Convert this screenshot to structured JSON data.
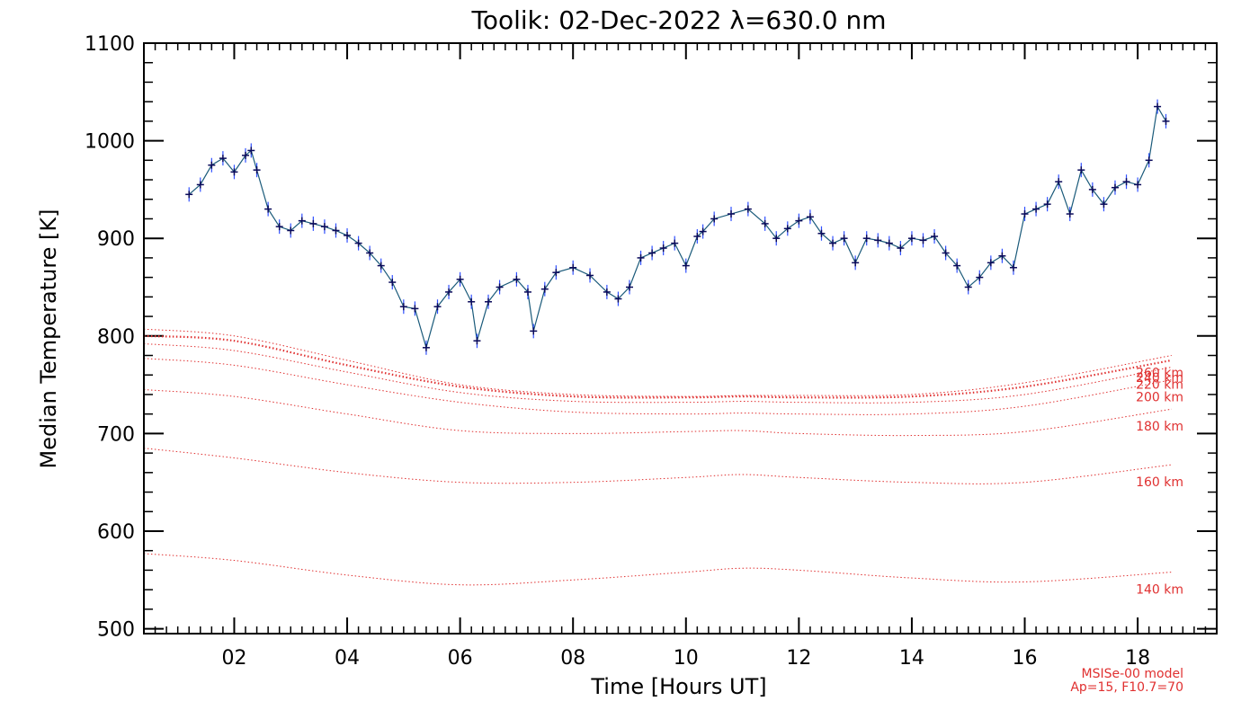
{
  "chart_data": {
    "type": "line",
    "title": "Toolik: 02-Dec-2022 λ=630.0 nm",
    "xlabel": "Time [Hours UT]",
    "ylabel": "Median Temperature [K]",
    "xlim": [
      0.4,
      19.4
    ],
    "ylim": [
      495,
      1100
    ],
    "x_ticks": [
      2,
      4,
      6,
      8,
      10,
      12,
      14,
      16,
      18
    ],
    "x_tick_labels": [
      "02",
      "04",
      "06",
      "08",
      "10",
      "12",
      "14",
      "16",
      "18"
    ],
    "y_ticks": [
      500,
      600,
      700,
      800,
      900,
      1000,
      1100
    ],
    "y_tick_labels": [
      "500",
      "600",
      "700",
      "800",
      "900",
      "1000",
      "1100"
    ],
    "grid": false,
    "colors": {
      "measured": "#0a0a5a",
      "errorbar": "#3050ff",
      "model": "#e03030"
    },
    "series": [
      {
        "x": [
          1.2,
          1.4,
          1.6,
          1.8,
          2.0,
          2.2,
          2.3,
          2.4,
          2.6,
          2.8,
          3.0,
          3.2,
          3.4,
          3.6,
          3.8,
          4.0,
          4.2,
          4.4,
          4.6,
          4.8,
          5.0,
          5.2,
          5.4,
          5.6,
          5.8,
          6.0,
          6.2,
          6.3,
          6.5,
          6.7,
          7.0,
          7.2,
          7.3,
          7.5,
          7.7,
          8.0,
          8.3,
          8.6,
          8.8,
          9.0,
          9.2,
          9.4,
          9.6,
          9.8,
          10.0,
          10.2,
          10.3,
          10.5,
          10.8,
          11.1,
          11.4,
          11.6,
          11.8,
          12.0,
          12.2,
          12.4,
          12.6,
          12.8,
          13.0,
          13.2,
          13.4,
          13.6,
          13.8,
          14.0,
          14.2,
          14.4,
          14.6,
          14.8,
          15.0,
          15.2,
          15.4,
          15.6,
          15.8,
          16.0,
          16.2,
          16.4,
          16.6,
          16.8,
          17.0,
          17.2,
          17.4,
          17.6,
          17.8,
          18.0,
          18.2,
          18.35,
          18.5
        ],
        "y": [
          945,
          955,
          975,
          982,
          968,
          985,
          990,
          970,
          930,
          912,
          908,
          918,
          915,
          912,
          908,
          903,
          895,
          885,
          872,
          855,
          830,
          828,
          788,
          830,
          845,
          858,
          835,
          795,
          835,
          850,
          858,
          845,
          805,
          848,
          865,
          870,
          862,
          845,
          838,
          850,
          880,
          885,
          890,
          895,
          872,
          902,
          907,
          920,
          925,
          930,
          915,
          900,
          910,
          918,
          922,
          905,
          895,
          900,
          875,
          900,
          898,
          895,
          890,
          900,
          898,
          902,
          885,
          872,
          850,
          860,
          875,
          882,
          870,
          925,
          930,
          935,
          958,
          925,
          970,
          950,
          935,
          952,
          958,
          955,
          980,
          1035,
          1020
        ]
      },
      {
        "name": "140 km",
        "x": [
          0.4,
          2,
          4,
          6,
          8,
          10,
          11,
          12,
          14,
          16,
          18.6
        ],
        "y": [
          577,
          570,
          555,
          545,
          550,
          558,
          562,
          560,
          552,
          548,
          558
        ]
      },
      {
        "name": "160 km",
        "x": [
          0.4,
          2,
          4,
          6,
          8,
          10,
          11,
          12,
          14,
          16,
          18.6
        ],
        "y": [
          685,
          675,
          660,
          650,
          650,
          655,
          658,
          655,
          650,
          650,
          668
        ]
      },
      {
        "name": "180 km",
        "x": [
          0.4,
          2,
          4,
          6,
          8,
          10,
          11,
          12,
          14,
          16,
          18.6
        ],
        "y": [
          745,
          738,
          720,
          703,
          700,
          702,
          703,
          700,
          698,
          702,
          725
        ]
      },
      {
        "name": "200 km",
        "x": [
          0.4,
          2,
          4,
          6,
          8,
          10,
          11,
          12,
          14,
          16,
          18.6
        ],
        "y": [
          777,
          770,
          750,
          732,
          722,
          720,
          721,
          720,
          720,
          728,
          755
        ]
      },
      {
        "name": "220 km",
        "x": [
          0.4,
          2,
          4,
          6,
          8,
          10,
          11,
          12,
          14,
          16,
          18.6
        ],
        "y": [
          792,
          785,
          763,
          742,
          733,
          732,
          733,
          732,
          732,
          740,
          768
        ]
      },
      {
        "name": "240 km",
        "x": [
          0.4,
          2,
          4,
          6,
          8,
          10,
          11,
          12,
          14,
          16,
          18.6
        ],
        "y": [
          800,
          795,
          770,
          748,
          738,
          737,
          738,
          737,
          738,
          748,
          775
        ]
      },
      {
        "name": "260 km",
        "x": [
          0.4,
          2,
          4,
          6,
          8,
          10,
          11,
          12,
          14,
          16,
          18.6
        ],
        "y": [
          807,
          800,
          775,
          750,
          740,
          738,
          739,
          739,
          740,
          752,
          780
        ]
      }
    ],
    "model_note": [
      "MSISe-00 model",
      "Ap=15, F10.7=70"
    ]
  }
}
